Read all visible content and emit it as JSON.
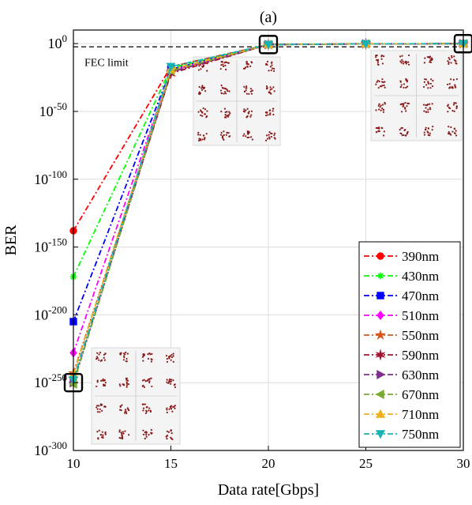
{
  "chart_data": {
    "type": "line",
    "title": "(a)",
    "xlabel": "Data rate[Gbps]",
    "ylabel": "BER",
    "x": [
      10,
      15,
      20,
      25,
      30
    ],
    "xlim": [
      10,
      30
    ],
    "ylim_exponent": [
      -300,
      10
    ],
    "yscale": "log",
    "x_ticks": [
      "10",
      "15",
      "20",
      "25",
      "30"
    ],
    "y_ticks": [
      {
        "base": "10",
        "exp": "0",
        "value": 0
      },
      {
        "base": "10",
        "exp": "-50",
        "value": -50
      },
      {
        "base": "10",
        "exp": "-100",
        "value": -100
      },
      {
        "base": "10",
        "exp": "-150",
        "value": -150
      },
      {
        "base": "10",
        "exp": "-200",
        "value": -200
      },
      {
        "base": "10",
        "exp": "-250",
        "value": -250
      },
      {
        "base": "10",
        "exp": "-300",
        "value": -300
      }
    ],
    "grid": true,
    "legend_position": "bottom-right",
    "annotations": [
      {
        "text": "FEC limit"
      }
    ],
    "fec_limit_exponent": -2.4,
    "series": [
      {
        "name": "390nm",
        "color": "#ff0000",
        "marker": "circle",
        "values_log10": [
          -138,
          -17,
          -0.7,
          -0.2,
          -0.05
        ]
      },
      {
        "name": "430nm",
        "color": "#00ff00",
        "marker": "asterisk",
        "values_log10": [
          -172,
          -18,
          -0.7,
          -0.2,
          -0.05
        ]
      },
      {
        "name": "470nm",
        "color": "#0000ff",
        "marker": "square",
        "values_log10": [
          -205,
          -19,
          -0.7,
          -0.2,
          -0.05
        ]
      },
      {
        "name": "510nm",
        "color": "#ff00ff",
        "marker": "diamond",
        "values_log10": [
          -228,
          -20,
          -0.7,
          -0.2,
          -0.05
        ]
      },
      {
        "name": "550nm",
        "color": "#d95319",
        "marker": "star",
        "values_log10": [
          -243,
          -21,
          -0.7,
          -0.2,
          -0.05
        ]
      },
      {
        "name": "590nm",
        "color": "#a2142f",
        "marker": "hexagram",
        "values_log10": [
          -248,
          -22,
          -0.7,
          -0.2,
          -0.05
        ]
      },
      {
        "name": "630nm",
        "color": "#7e2f8e",
        "marker": "triangle-right",
        "values_log10": [
          -250,
          -21,
          -0.7,
          -0.2,
          -0.05
        ]
      },
      {
        "name": "670nm",
        "color": "#77ac30",
        "marker": "triangle-left",
        "values_log10": [
          -251,
          -20,
          -0.7,
          -0.2,
          -0.05
        ]
      },
      {
        "name": "710nm",
        "color": "#edb120",
        "marker": "triangle-up",
        "values_log10": [
          -244,
          -19,
          -0.7,
          -0.2,
          -0.05
        ]
      },
      {
        "name": "750nm",
        "color": "#16b3b3",
        "marker": "triangle-down",
        "values_log10": [
          -248,
          -17,
          -0.7,
          -0.2,
          -0.05
        ]
      }
    ]
  }
}
